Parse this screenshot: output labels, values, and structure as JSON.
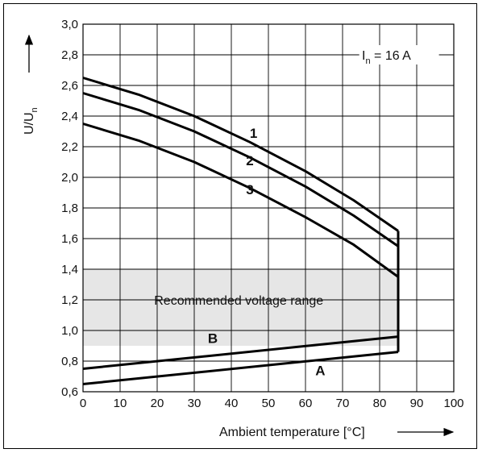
{
  "chart_data": {
    "type": "line",
    "title": "",
    "xlabel": "Ambient temperature [°C]",
    "ylabel": "U/U",
    "ylabel_sub": "n",
    "xlim": [
      0,
      100
    ],
    "ylim": [
      0.6,
      3.0
    ],
    "x_ticks": [
      "0",
      "10",
      "20",
      "30",
      "40",
      "50",
      "60",
      "70",
      "80",
      "90",
      "100"
    ],
    "y_ticks": [
      "0,6",
      "0,8",
      "1,0",
      "1,2",
      "1,4",
      "1,6",
      "1,8",
      "2,0",
      "2,2",
      "2,4",
      "2,6",
      "2,8",
      "3,0"
    ],
    "grid": true,
    "annotation": {
      "main": "I",
      "sub": "n",
      "rest": " = 16 A"
    },
    "band": {
      "label": "Recommended voltage range",
      "y_range": [
        0.9,
        1.4
      ],
      "x_range": [
        0,
        85
      ]
    },
    "series": [
      {
        "name": "1",
        "x": [
          0,
          15,
          30,
          45,
          60,
          73,
          85
        ],
        "y": [
          2.65,
          2.54,
          2.4,
          2.23,
          2.04,
          1.85,
          1.65
        ]
      },
      {
        "name": "2",
        "x": [
          0,
          15,
          30,
          45,
          60,
          73,
          85
        ],
        "y": [
          2.55,
          2.44,
          2.3,
          2.13,
          1.94,
          1.75,
          1.55
        ]
      },
      {
        "name": "3",
        "x": [
          0,
          15,
          30,
          45,
          60,
          73,
          85
        ],
        "y": [
          2.35,
          2.24,
          2.1,
          1.93,
          1.74,
          1.56,
          1.35
        ]
      },
      {
        "name": "B",
        "x": [
          0,
          85
        ],
        "y": [
          0.75,
          0.96
        ]
      },
      {
        "name": "A",
        "x": [
          0,
          85
        ],
        "y": [
          0.65,
          0.86
        ]
      }
    ],
    "curve_label_pos": {
      "1": [
        46,
        2.29
      ],
      "2": [
        45,
        2.11
      ],
      "3": [
        45,
        1.92
      ],
      "B": [
        35,
        0.95
      ],
      "A": [
        64,
        0.74
      ]
    }
  }
}
